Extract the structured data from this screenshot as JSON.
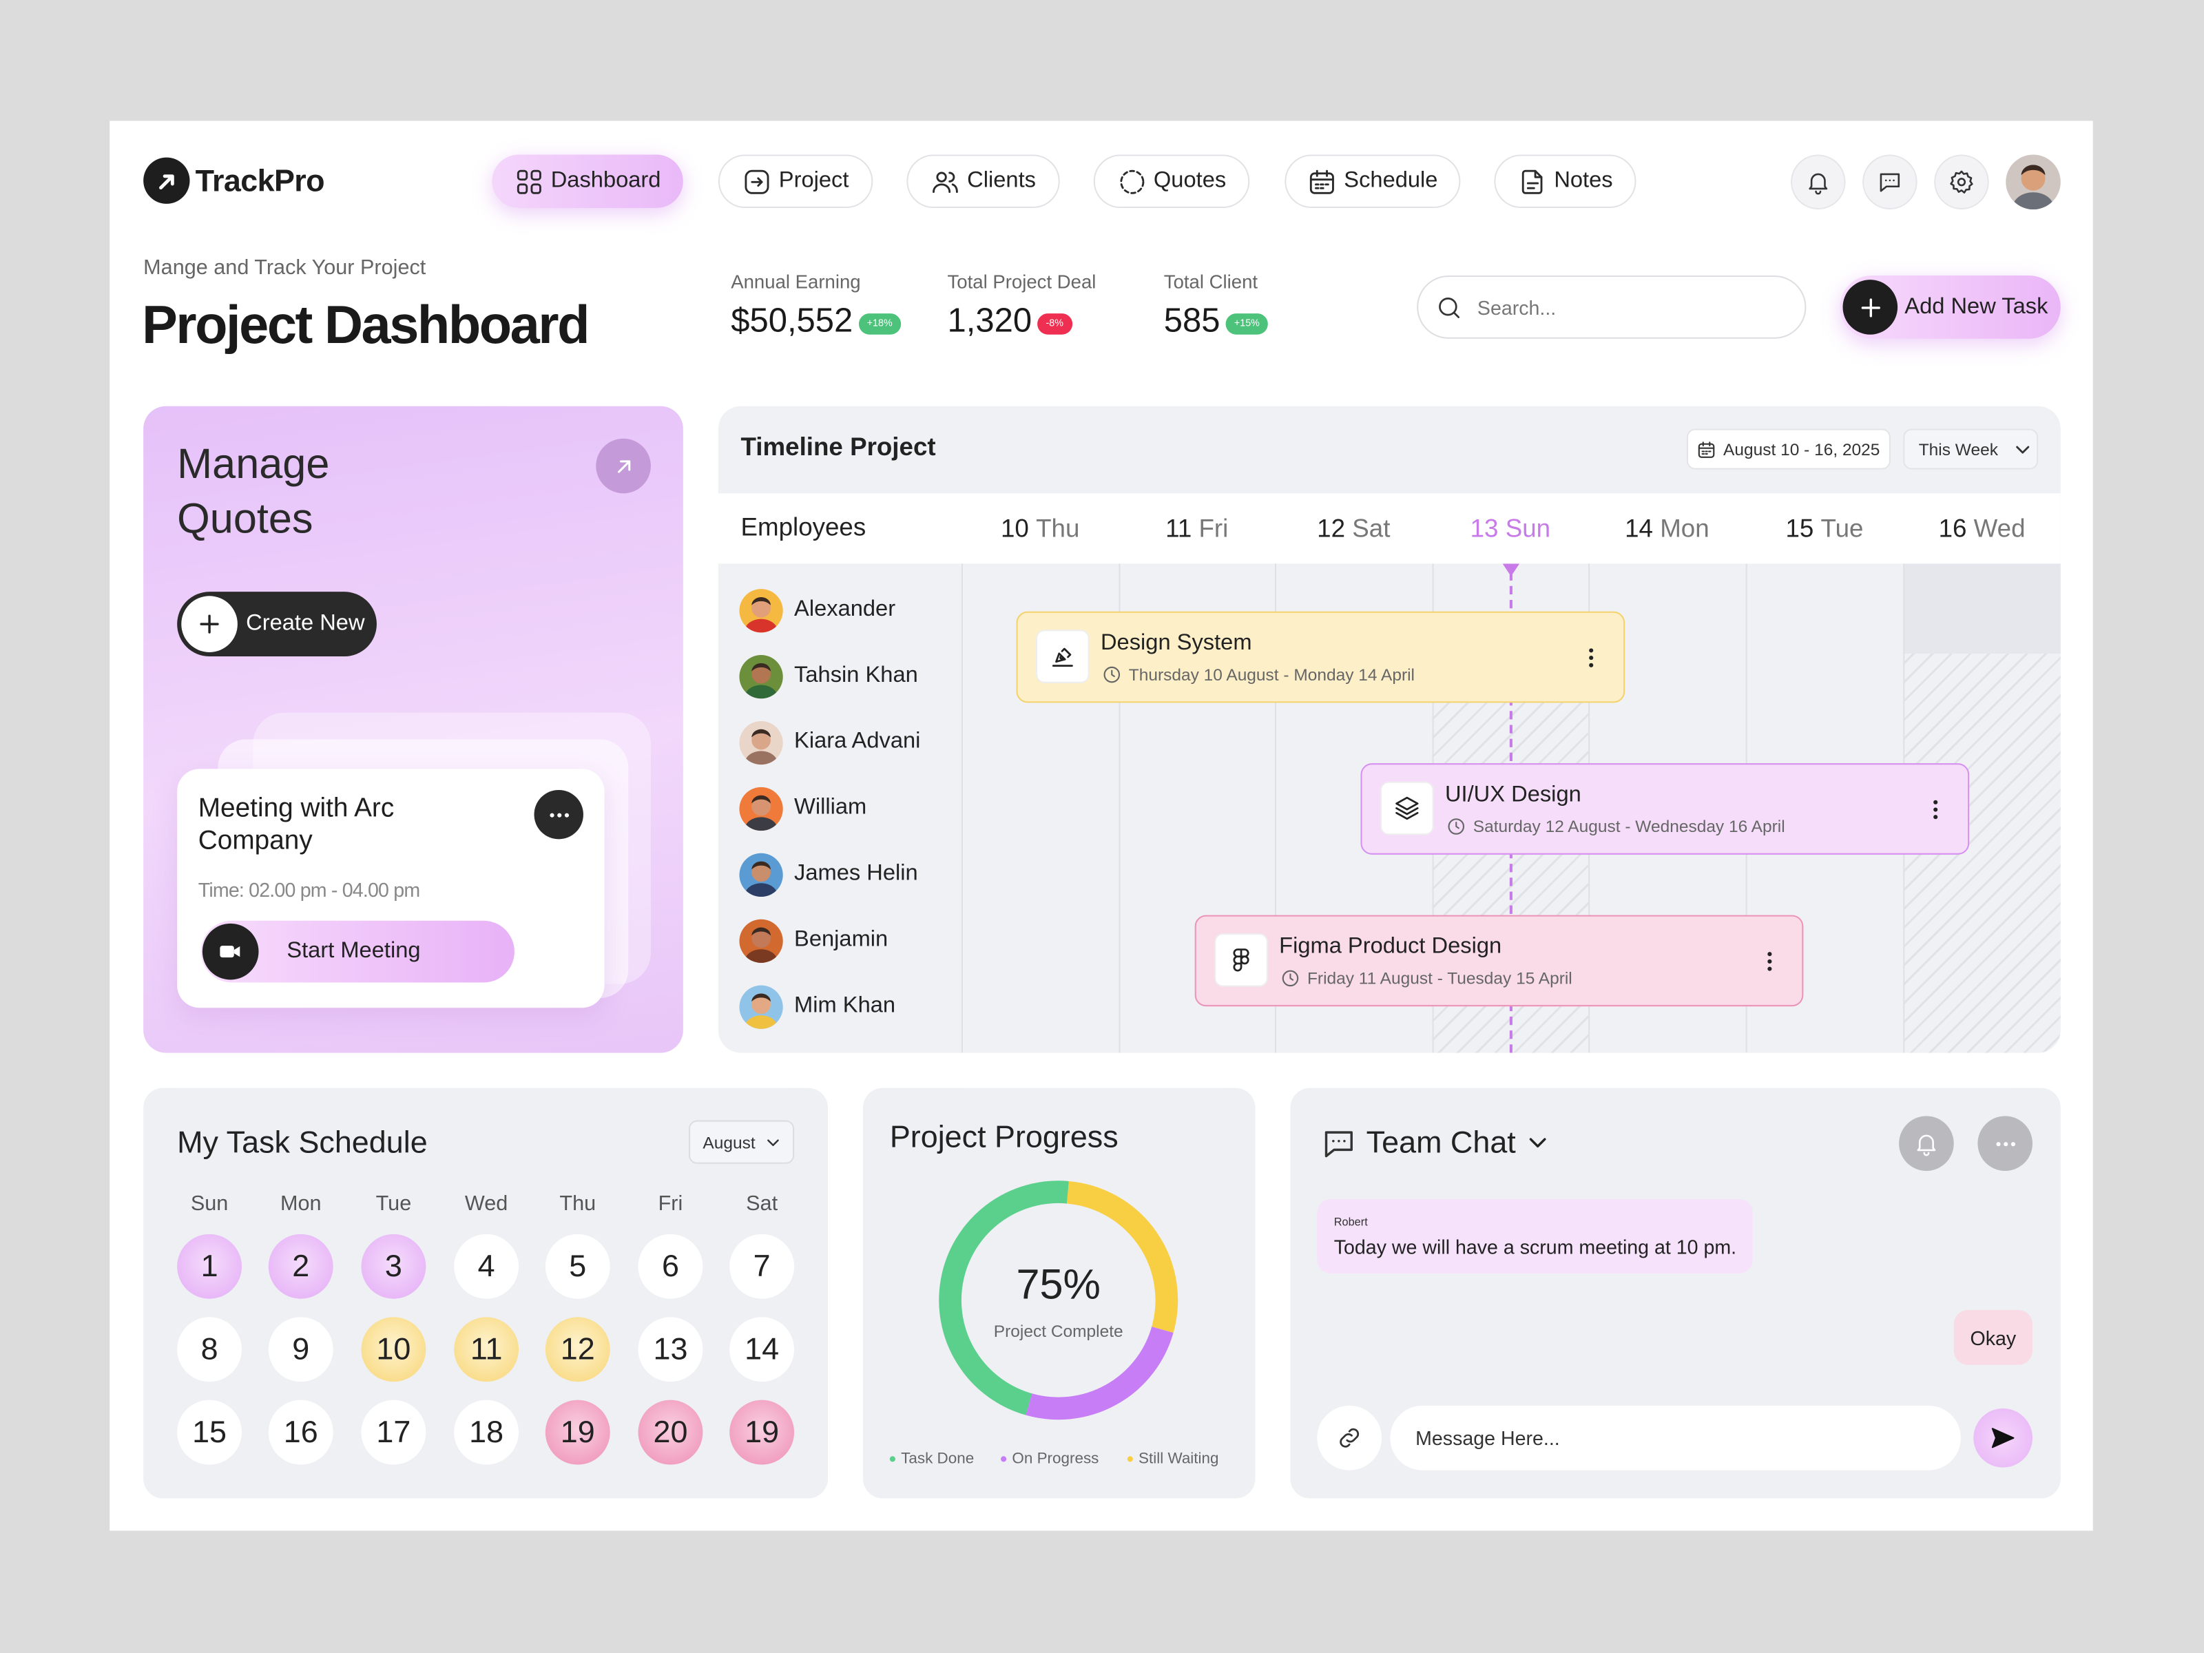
{
  "brand": "TrackPro",
  "nav": [
    "Dashboard",
    "Project",
    "Clients",
    "Quotes",
    "Schedule",
    "Notes"
  ],
  "header": {
    "subtitle": "Mange and Track Your Project",
    "title": "Project Dashboard"
  },
  "stats": [
    {
      "label": "Annual Earning",
      "value": "$50,552",
      "change": "+18%",
      "trend": "up"
    },
    {
      "label": "Total Project Deal",
      "value": "1,320",
      "change": "-8%",
      "trend": "down"
    },
    {
      "label": "Total Client",
      "value": "585",
      "change": "+15%",
      "trend": "up"
    }
  ],
  "search": "Search...",
  "add_task": "Add New Task",
  "quotes": {
    "title": "Manage Quotes",
    "create": "Create New",
    "meeting": {
      "title": "Meeting with Arc Company",
      "time": "Time: 02.00 pm - 04.00 pm",
      "action": "Start Meeting"
    }
  },
  "timeline": {
    "title": "Timeline Project",
    "range": "August 10 - 16, 2025",
    "period": "This Week",
    "employees_label": "Employees",
    "days": [
      {
        "date": "10",
        "day": "Thu"
      },
      {
        "date": "11",
        "day": "Fri"
      },
      {
        "date": "12",
        "day": "Sat"
      },
      {
        "date": "13",
        "day": "Sun"
      },
      {
        "date": "14",
        "day": "Mon"
      },
      {
        "date": "15",
        "day": "Tue"
      },
      {
        "date": "16",
        "day": "Wed"
      }
    ],
    "employees": [
      "Alexander",
      "Tahsin Khan",
      "Kiara Advani",
      "William",
      "James Helin",
      "Benjamin",
      "Mim Khan"
    ],
    "tasks": [
      {
        "name": "Design System",
        "dates": "Thursday 10 August - Monday 14 April"
      },
      {
        "name": "UI/UX Design",
        "dates": "Saturday 12 August - Wednesday 16 April"
      },
      {
        "name": "Figma Product Design",
        "dates": "Friday 11 August - Tuesday 15 April"
      }
    ]
  },
  "schedule": {
    "title": "My Task Schedule",
    "month": "August",
    "weekdays": [
      "Sun",
      "Mon",
      "Tue",
      "Wed",
      "Thu",
      "Fri",
      "Sat"
    ],
    "days": [
      {
        "day": 1,
        "tone": "purple"
      },
      {
        "day": 2,
        "tone": "purple"
      },
      {
        "day": 3,
        "tone": "purple"
      },
      {
        "day": 4,
        "tone": "none"
      },
      {
        "day": 5,
        "tone": "none"
      },
      {
        "day": 6,
        "tone": "none"
      },
      {
        "day": 7,
        "tone": "none"
      },
      {
        "day": 8,
        "tone": "none"
      },
      {
        "day": 9,
        "tone": "none"
      },
      {
        "day": 10,
        "tone": "yellow"
      },
      {
        "day": 11,
        "tone": "yellow"
      },
      {
        "day": 12,
        "tone": "yellow"
      },
      {
        "day": 13,
        "tone": "none"
      },
      {
        "day": 14,
        "tone": "none"
      },
      {
        "day": 15,
        "tone": "none"
      },
      {
        "day": 16,
        "tone": "none"
      },
      {
        "day": 17,
        "tone": "none"
      },
      {
        "day": 18,
        "tone": "none"
      },
      {
        "day": 19,
        "tone": "pink"
      },
      {
        "day": 20,
        "tone": "pink"
      },
      {
        "day": 19,
        "tone": "pink"
      }
    ]
  },
  "progress": {
    "title": "Project Progress",
    "value": "75%",
    "caption": "Project Complete",
    "segments": [
      {
        "name": "Task Done",
        "color": "#5bcf8c",
        "value": 47
      },
      {
        "name": "On Progress",
        "color": "#c77df5",
        "value": 25
      },
      {
        "name": "Still Waiting",
        "color": "#f8cf42",
        "value": 28
      }
    ]
  },
  "chat": {
    "title": "Team Chat",
    "messages": [
      {
        "sender": "Robert",
        "text": "Today we will have a scrum meeting at 10 pm."
      },
      {
        "text": "Okay"
      }
    ],
    "placeholder": "Message Here..."
  }
}
